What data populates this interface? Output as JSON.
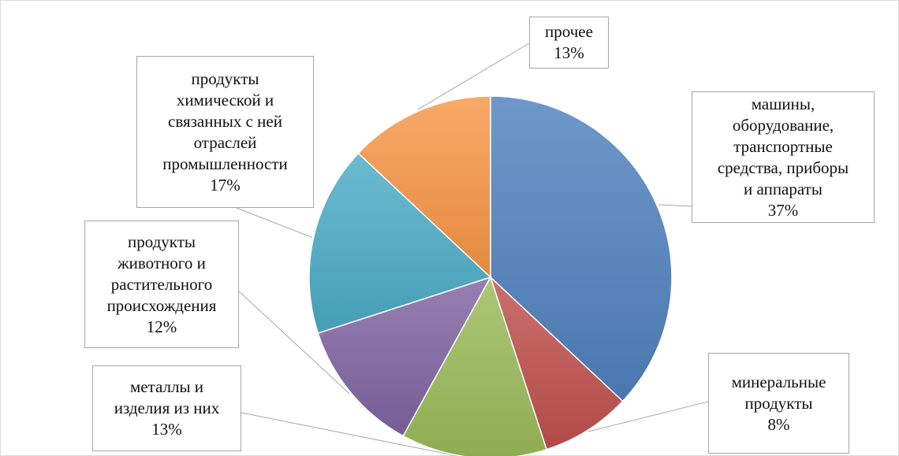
{
  "chart_data": {
    "type": "pie",
    "title": "",
    "slices": [
      {
        "label": "машины,\nоборудование,\nтранспортные\nсредства, приборы\nи аппараты",
        "value": 37,
        "value_label": "37%",
        "color": "#4f81bd"
      },
      {
        "label": "минеральные\nпродукты",
        "value": 8,
        "value_label": "8%",
        "color": "#c0504d"
      },
      {
        "label": "металлы и\nизделия из них",
        "value": 13,
        "value_label": "13%",
        "color": "#9bbb59"
      },
      {
        "label": "продукты\nживотного и\nрастительного\nпроисхождения",
        "value": 12,
        "value_label": "12%",
        "color": "#8064a2"
      },
      {
        "label": "продукты\nхимической и\nсвязанных с ней\nотраслей\nпромышленности",
        "value": 17,
        "value_label": "17%",
        "color": "#4bacc6"
      },
      {
        "label": "прочее",
        "value": 13,
        "value_label": "13%",
        "color": "#f79646"
      }
    ],
    "start_angle": "12 o'clock",
    "direction": "clockwise",
    "legend": "none",
    "data_labels": "callouts with leader lines"
  }
}
